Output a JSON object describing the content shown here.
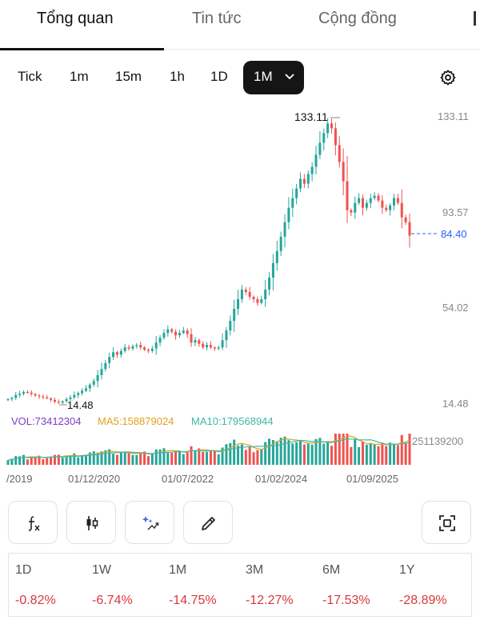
{
  "tabs": [
    {
      "label": "Tổng quan",
      "active": true
    },
    {
      "label": "Tin tức",
      "active": false
    },
    {
      "label": "Cộng đồng",
      "active": false
    }
  ],
  "timeframes": [
    "Tick",
    "1m",
    "15m",
    "1h",
    "1D"
  ],
  "timeframe_selected": "1M",
  "chart": {
    "price_axis": [
      "133.11",
      "93.57",
      "54.02",
      "14.48"
    ],
    "last_price": "84.40",
    "high_label": "133.11",
    "low_label": "14.48",
    "indicators": {
      "vol": "VOL:73412304",
      "ma5": "MA5:158879024",
      "ma10": "MA10:179568944"
    },
    "volume_max_label": "251139200",
    "date_labels": [
      "/2019",
      "01/12/2020",
      "01/07/2022",
      "01/02/2024",
      "01/09/2025"
    ],
    "colors": {
      "up": "#26a69a",
      "down": "#ef5350",
      "vol": "#7b3fbf",
      "ma5": "#e0a020",
      "ma10": "#3fb6a8",
      "last_price": "#2962ff"
    }
  },
  "chart_data": {
    "type": "candlestick",
    "ylim": [
      14.48,
      133.11
    ],
    "high": 133.11,
    "low": 14.48,
    "last": 84.4,
    "closes": [
      16.5,
      17,
      18.2,
      18.8,
      19.5,
      19.2,
      18.6,
      18,
      17.6,
      17.2,
      16.8,
      16.2,
      15.4,
      15,
      15.6,
      16.5,
      17.2,
      18.2,
      19,
      20,
      21,
      22.5,
      24,
      26.5,
      29,
      31.5,
      34,
      36,
      35,
      36.5,
      38,
      37.5,
      38.5,
      39,
      38,
      37,
      36.5,
      37.5,
      40,
      42,
      44,
      45.5,
      44.5,
      43,
      44,
      45,
      43.5,
      40,
      41,
      39.5,
      38,
      39,
      38,
      37.5,
      38,
      41,
      45,
      49,
      54,
      58,
      62,
      61,
      59,
      58,
      56.5,
      58,
      62,
      67,
      73,
      78,
      84,
      90,
      96,
      100,
      104,
      108,
      106,
      110,
      113,
      118,
      123,
      127,
      131,
      129,
      122,
      115,
      107,
      95,
      94,
      98,
      100,
      96,
      98,
      100,
      101,
      99,
      96,
      95,
      97,
      100,
      98,
      92,
      90,
      84.4
    ]
  },
  "tools": [
    "fx-icon",
    "candlestick-icon",
    "ai-magic-icon",
    "pencil-icon",
    "fullscreen-icon"
  ],
  "performance": [
    {
      "period": "1D",
      "change": "-0.82%"
    },
    {
      "period": "1W",
      "change": "-6.74%"
    },
    {
      "period": "1M",
      "change": "-14.75%"
    },
    {
      "period": "3M",
      "change": "-12.27%"
    },
    {
      "period": "6M",
      "change": "-17.53%"
    },
    {
      "period": "1Y",
      "change": "-28.89%"
    }
  ]
}
